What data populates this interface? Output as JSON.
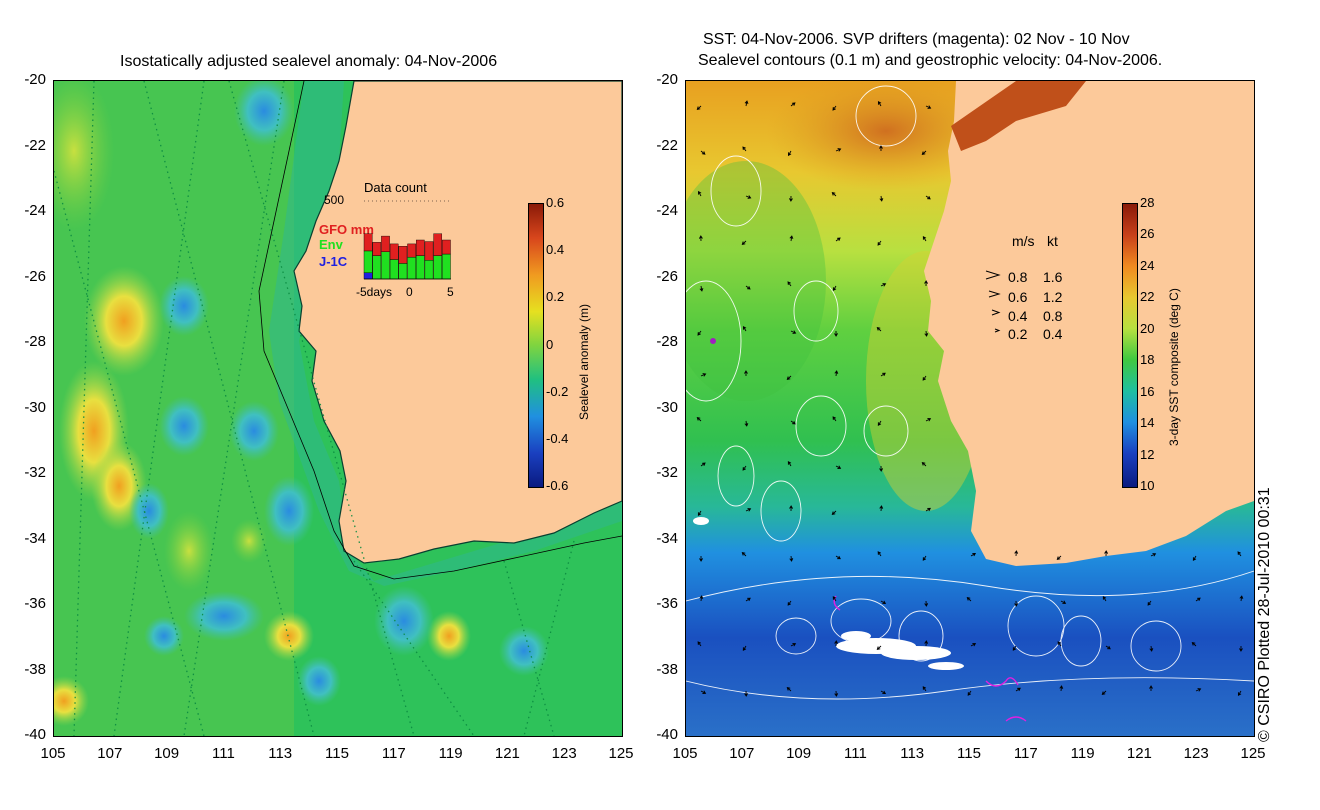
{
  "left_panel": {
    "title": "Isostatically adjusted sealevel anomaly: 04-Nov-2006",
    "y_ticks": [
      "-20",
      "-22",
      "-24",
      "-26",
      "-28",
      "-30",
      "-32",
      "-34",
      "-36",
      "-38",
      "-40"
    ],
    "x_ticks": [
      "105",
      "107",
      "109",
      "111",
      "113",
      "115",
      "117",
      "119",
      "121",
      "123",
      "125"
    ],
    "colorbar": {
      "label": "Sealevel anomaly (m)",
      "ticks": [
        "0.6",
        "0.4",
        "0.2",
        "0",
        "-0.2",
        "-0.4",
        "-0.6"
      ]
    },
    "inset": {
      "title": "Data count",
      "ymax": "500",
      "series_labels": [
        "GFO mm",
        "Env",
        "J-1C"
      ],
      "x_ticks": [
        "-5days",
        "0",
        "5"
      ],
      "bars": [
        {
          "j1c": 0.08,
          "env": 0.28,
          "gfo": 0.22
        },
        {
          "j1c": 0.0,
          "env": 0.3,
          "gfo": 0.17
        },
        {
          "j1c": 0.0,
          "env": 0.35,
          "gfo": 0.2
        },
        {
          "j1c": 0.0,
          "env": 0.25,
          "gfo": 0.2
        },
        {
          "j1c": 0.0,
          "env": 0.2,
          "gfo": 0.22
        },
        {
          "j1c": 0.0,
          "env": 0.28,
          "gfo": 0.17
        },
        {
          "j1c": 0.0,
          "env": 0.3,
          "gfo": 0.2
        },
        {
          "j1c": 0.0,
          "env": 0.24,
          "gfo": 0.24
        },
        {
          "j1c": 0.0,
          "env": 0.3,
          "gfo": 0.28
        },
        {
          "j1c": 0.0,
          "env": 0.32,
          "gfo": 0.18
        }
      ]
    }
  },
  "right_panel": {
    "title_line1": "SST: 04-Nov-2006. SVP drifters (magenta): 02 Nov - 10 Nov",
    "title_line2": "Sealevel contours (0.1 m) and geostrophic velocity: 04-Nov-2006.",
    "y_ticks": [
      "-20",
      "-22",
      "-24",
      "-26",
      "-28",
      "-30",
      "-32",
      "-34",
      "-36",
      "-38",
      "-40"
    ],
    "x_ticks": [
      "105",
      "107",
      "109",
      "111",
      "113",
      "115",
      "117",
      "119",
      "121",
      "123",
      "125"
    ],
    "colorbar": {
      "label": "3-day SST composite (deg C)",
      "ticks": [
        "28",
        "26",
        "24",
        "22",
        "20",
        "18",
        "16",
        "14",
        "12",
        "10"
      ]
    },
    "velocity_legend": {
      "header_ms": "m/s",
      "header_kt": "kt",
      "rows": [
        {
          "ms": "0.8",
          "kt": "1.6"
        },
        {
          "ms": "0.6",
          "kt": "1.2"
        },
        {
          "ms": "0.4",
          "kt": "0.8"
        },
        {
          "ms": "0.2",
          "kt": "0.4"
        }
      ]
    }
  },
  "credit": "© CSIRO Plotted 28-Jul-2010 00:31",
  "colors": {
    "land": "#fcc99a",
    "sla_base": "#22c35a",
    "sst_warm": "#e8b020",
    "sst_cold": "#1a5ad0"
  }
}
